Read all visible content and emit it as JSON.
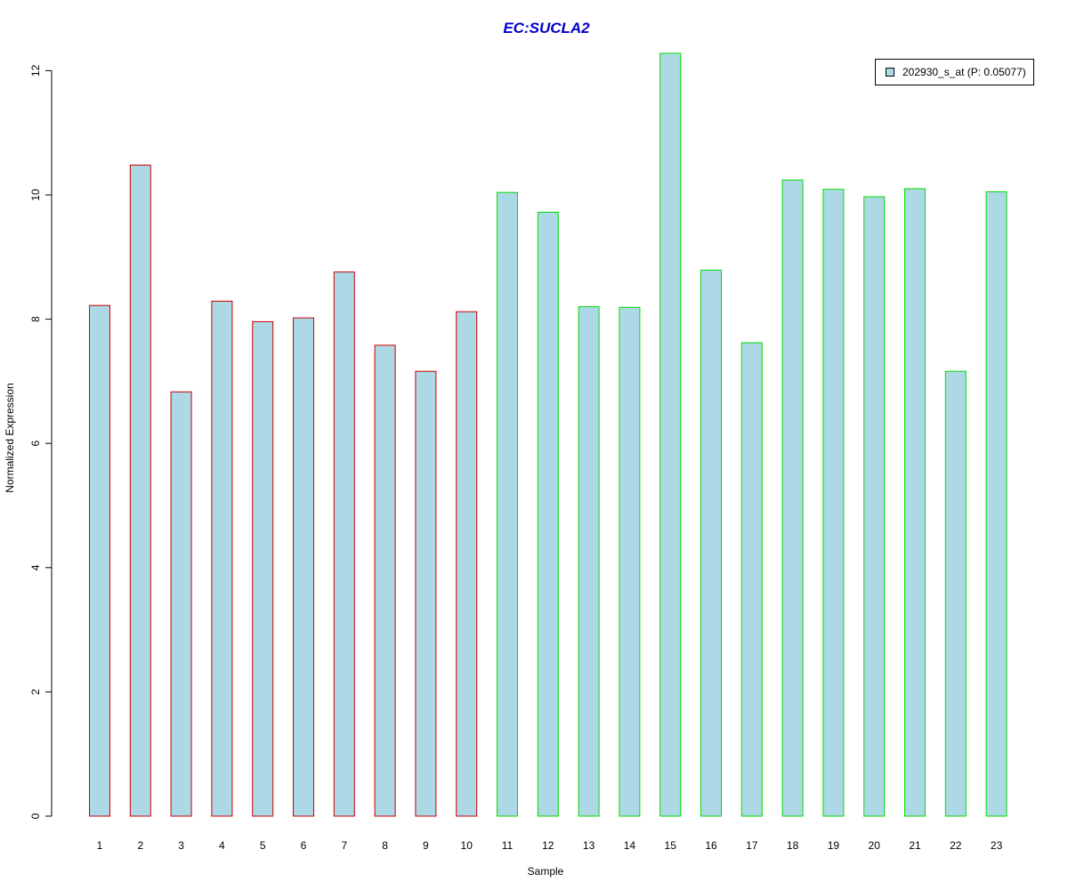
{
  "chart_data": {
    "type": "bar",
    "title": "EC:SUCLA2",
    "xlabel": "Sample",
    "ylabel": "Normalized Expression",
    "categories": [
      "1",
      "2",
      "3",
      "4",
      "5",
      "6",
      "7",
      "8",
      "9",
      "10",
      "11",
      "12",
      "13",
      "14",
      "15",
      "16",
      "17",
      "18",
      "19",
      "20",
      "21",
      "22",
      "23"
    ],
    "series": [
      {
        "name": "202930_s_at (P: 0.05077)",
        "values": [
          8.22,
          10.48,
          6.83,
          8.29,
          7.96,
          8.02,
          8.76,
          7.58,
          7.16,
          8.12,
          10.04,
          9.72,
          8.2,
          8.19,
          12.28,
          8.79,
          7.62,
          10.24,
          10.09,
          9.97,
          10.1,
          7.16,
          10.05
        ]
      }
    ],
    "group_outline_colors": [
      "#cc0000",
      "#cc0000",
      "#cc0000",
      "#cc0000",
      "#cc0000",
      "#cc0000",
      "#cc0000",
      "#cc0000",
      "#cc0000",
      "#cc0000",
      "#00dd00",
      "#00dd00",
      "#00dd00",
      "#00dd00",
      "#00dd00",
      "#00dd00",
      "#00dd00",
      "#00dd00",
      "#00dd00",
      "#00dd00",
      "#00dd00",
      "#00dd00",
      "#00dd00"
    ],
    "bar_fill": "#add8e6",
    "title_color": "#0000cc",
    "ylim": [
      0,
      12.3
    ],
    "yticks": [
      0,
      2,
      4,
      6,
      8,
      10,
      12
    ],
    "grid": false,
    "legend_position": "top-right"
  }
}
